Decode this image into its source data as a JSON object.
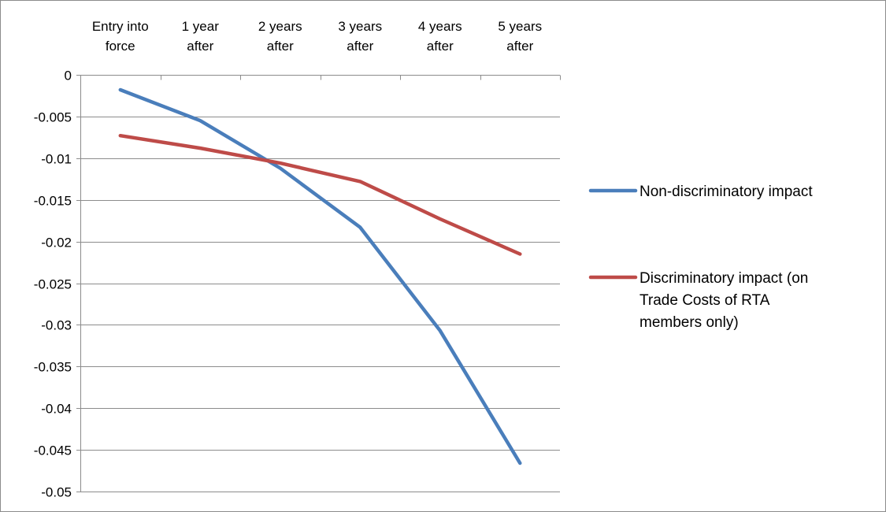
{
  "chart_data": {
    "type": "line",
    "categories": [
      [
        "Entry into",
        "force"
      ],
      [
        "1 year",
        "after"
      ],
      [
        "2 years",
        "after"
      ],
      [
        "3 years",
        "after"
      ],
      [
        "4 years",
        "after"
      ],
      [
        "5 years",
        "after"
      ]
    ],
    "series": [
      {
        "name": "Non-discriminatory impact",
        "name_lines": [
          "Non-discriminatory impact"
        ],
        "color": "#4a7ebb",
        "values": [
          -0.0018,
          -0.0055,
          -0.0112,
          -0.0183,
          -0.0307,
          -0.0466
        ]
      },
      {
        "name": "Discriminatory impact (on Trade Costs of RTA members only)",
        "name_lines": [
          "Discriminatory impact (on",
          "Trade Costs of RTA",
          "members only)"
        ],
        "color": "#be4b48",
        "values": [
          -0.0073,
          -0.0088,
          -0.0106,
          -0.0128,
          -0.0173,
          -0.0215
        ]
      }
    ],
    "ylim": [
      -0.05,
      0
    ],
    "yticks": [
      0,
      -0.005,
      -0.01,
      -0.015,
      -0.02,
      -0.025,
      -0.03,
      -0.035,
      -0.04,
      -0.045,
      -0.05
    ],
    "ytick_labels": [
      "0",
      "-0.005",
      "-0.01",
      "-0.015",
      "-0.02",
      "-0.025",
      "-0.03",
      "-0.035",
      "-0.04",
      "-0.045",
      "-0.05"
    ],
    "grid": true,
    "x_axis_position": "top",
    "legend_position": "right",
    "title": "",
    "xlabel": "",
    "ylabel": ""
  }
}
